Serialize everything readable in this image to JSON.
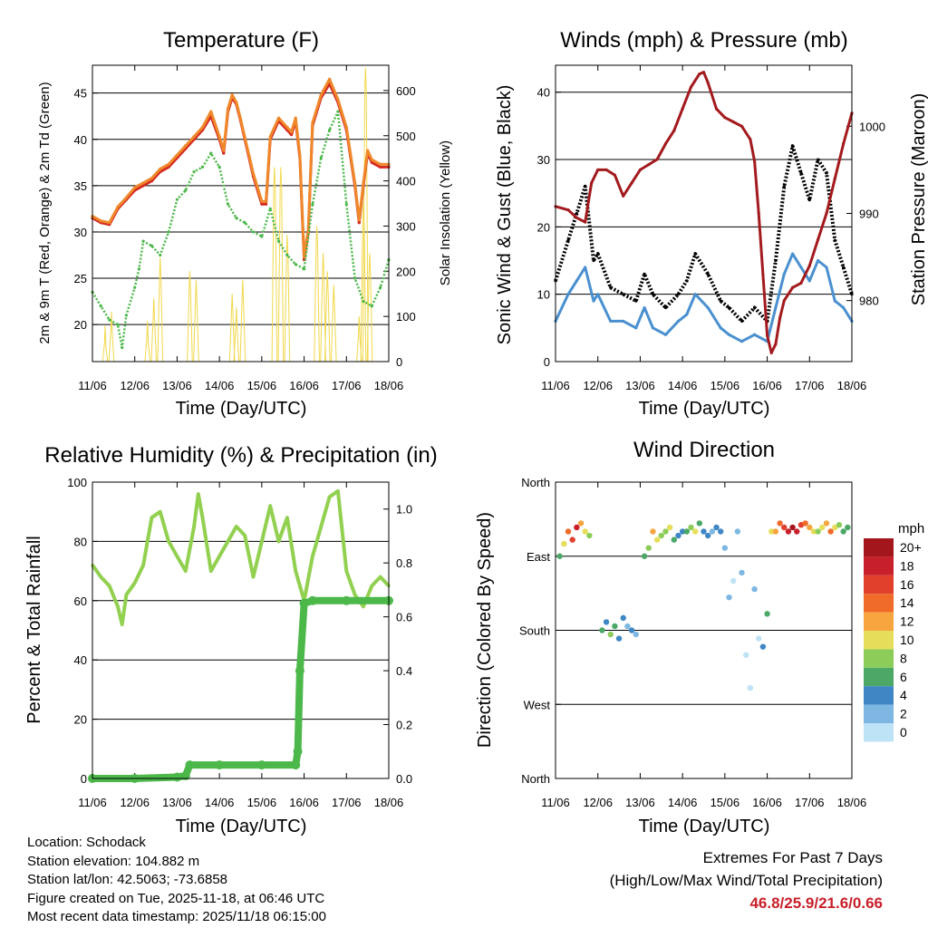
{
  "panels": {
    "temperature": {
      "title": "Temperature (F)",
      "xlabel": "Time (Day/UTC)",
      "ylabel_left": "2m & 9m T (Red, Orange) & 2m Td (Green)",
      "ylabel_right": "Solar Insolation (Yellow)"
    },
    "winds": {
      "title": "Winds (mph) & Pressure (mb)",
      "xlabel": "Time (Day/UTC)",
      "ylabel_left": "Sonic Wind & Gust (Blue, Black)",
      "ylabel_right": "Station Pressure (Maroon)"
    },
    "humidity": {
      "title": "Relative Humidity (%) & Precipitation (in)",
      "xlabel": "Time (Day/UTC)",
      "ylabel_left": "Percent & Total Rainfall"
    },
    "direction": {
      "title": "Wind Direction",
      "xlabel": "Time (Day/UTC)",
      "ylabel_left": "Direction (Colored By Speed)"
    }
  },
  "legend": {
    "title": "mph",
    "labels": [
      "20+",
      "18",
      "16",
      "14",
      "12",
      "10",
      "8",
      "6",
      "4",
      "2",
      "0"
    ],
    "colors": [
      "#a3161c",
      "#c8202a",
      "#e0402c",
      "#f06a2a",
      "#f7a53e",
      "#e6de5a",
      "#8ccd5a",
      "#4ba867",
      "#3f87c4",
      "#7db7e2",
      "#bfe3f6"
    ]
  },
  "info": {
    "location": "Location: Schodack",
    "elevation": "Station elevation: 104.882 m",
    "latlon": "Station lat/lon: 42.5063; -73.6858",
    "created": "Figure created on Tue, 2025-11-18, at 06:46 UTC",
    "timestamp": "Most recent data timestamp: 2025/11/18 06:15:00"
  },
  "extremes": {
    "line1": "Extremes For Past 7 Days",
    "line2": "(High/Low/Max Wind/Total Precipitation)",
    "values": "46.8/25.9/21.6/0.66"
  },
  "chart_data": [
    {
      "type": "line",
      "title": "Temperature (F)",
      "xlabel": "Time (Day/UTC)",
      "ylabel": "2m & 9m T (Red, Orange) & 2m Td (Green)",
      "ylabel_right": "Solar Insolation (Yellow)",
      "x_ticks": [
        "11/06",
        "12/06",
        "13/06",
        "14/06",
        "15/06",
        "16/06",
        "17/06",
        "18/06"
      ],
      "xlim": [
        0,
        7
      ],
      "ylim": [
        16,
        48
      ],
      "y_ticks": [
        20,
        25,
        30,
        35,
        40,
        45
      ],
      "ylim_right": [
        0,
        656
      ],
      "y_ticks_right": [
        0,
        100,
        200,
        300,
        400,
        500,
        600
      ],
      "grid": true,
      "series": [
        {
          "name": "2m T",
          "color": "#d42a22",
          "x": [
            0,
            0.2,
            0.4,
            0.6,
            0.8,
            1.0,
            1.2,
            1.4,
            1.6,
            1.8,
            2.0,
            2.2,
            2.4,
            2.6,
            2.8,
            3.0,
            3.1,
            3.2,
            3.3,
            3.4,
            3.5,
            3.6,
            3.8,
            4.0,
            4.1,
            4.2,
            4.4,
            4.6,
            4.7,
            4.8,
            4.9,
            5.0,
            5.1,
            5.2,
            5.4,
            5.6,
            5.8,
            6.0,
            6.2,
            6.3,
            6.4,
            6.5,
            6.6,
            6.8,
            7.0
          ],
          "y": [
            31.5,
            31.0,
            30.8,
            32.5,
            33.5,
            34.5,
            35.0,
            35.5,
            36.5,
            37.0,
            38.0,
            39.0,
            40.0,
            41.0,
            42.5,
            40.0,
            38.5,
            43.0,
            44.5,
            43.8,
            42.0,
            40.0,
            36.0,
            33.0,
            33.0,
            40.0,
            42.0,
            41.0,
            40.5,
            42.0,
            38.0,
            27.0,
            30.0,
            41.5,
            44.5,
            46.0,
            44.0,
            41.0,
            35.0,
            31.0,
            35.0,
            38.5,
            37.5,
            37.0,
            37.0
          ]
        },
        {
          "name": "9m T",
          "color": "#f0882a",
          "x": [
            0,
            0.2,
            0.4,
            0.6,
            0.8,
            1.0,
            1.2,
            1.4,
            1.6,
            1.8,
            2.0,
            2.2,
            2.4,
            2.6,
            2.8,
            3.0,
            3.1,
            3.2,
            3.3,
            3.4,
            3.5,
            3.6,
            3.8,
            4.0,
            4.1,
            4.2,
            4.4,
            4.6,
            4.7,
            4.8,
            4.9,
            5.0,
            5.1,
            5.2,
            5.4,
            5.6,
            5.8,
            6.0,
            6.2,
            6.3,
            6.4,
            6.5,
            6.6,
            6.8,
            7.0
          ],
          "y": [
            31.7,
            31.2,
            31.0,
            32.7,
            33.7,
            34.8,
            35.3,
            35.8,
            36.8,
            37.3,
            38.3,
            39.3,
            40.3,
            41.3,
            43.0,
            40.3,
            38.8,
            43.3,
            44.8,
            44.0,
            42.2,
            40.2,
            36.3,
            33.3,
            33.3,
            40.3,
            42.3,
            41.3,
            40.8,
            42.3,
            38.3,
            27.3,
            30.3,
            41.8,
            44.8,
            46.5,
            44.3,
            41.3,
            35.3,
            31.3,
            35.3,
            38.8,
            37.8,
            37.3,
            37.3
          ]
        },
        {
          "name": "2m Td",
          "color": "#4cb84a",
          "x": [
            0,
            0.2,
            0.4,
            0.6,
            0.7,
            0.8,
            1.0,
            1.1,
            1.2,
            1.4,
            1.6,
            1.8,
            2.0,
            2.2,
            2.4,
            2.6,
            2.8,
            3.0,
            3.2,
            3.4,
            3.6,
            3.8,
            4.0,
            4.2,
            4.4,
            4.6,
            4.8,
            5.0,
            5.2,
            5.4,
            5.6,
            5.8,
            6.0,
            6.2,
            6.4,
            6.6,
            6.8,
            7.0
          ],
          "y": [
            23.5,
            22.0,
            20.5,
            20.0,
            17.5,
            21.0,
            24.0,
            26.0,
            29.0,
            28.5,
            27.5,
            30.0,
            33.5,
            34.5,
            36.5,
            37.0,
            38.5,
            37.0,
            33.0,
            31.5,
            31.0,
            30.0,
            29.5,
            32.5,
            29.0,
            27.5,
            26.5,
            26.0,
            33.0,
            38.0,
            41.0,
            43.0,
            33.0,
            25.0,
            22.5,
            22.0,
            24.0,
            27.0
          ]
        }
      ],
      "insolation_peaks": {
        "x": [
          0.3,
          0.45,
          1.3,
          1.45,
          1.6,
          2.3,
          2.45,
          3.3,
          3.4,
          3.55,
          4.3,
          4.45,
          4.6,
          5.3,
          5.45,
          5.55,
          5.7,
          6.3,
          6.4,
          6.45,
          6.55
        ],
        "y": [
          80,
          110,
          90,
          140,
          230,
          200,
          180,
          150,
          120,
          180,
          430,
          430,
          280,
          300,
          240,
          200,
          170,
          100,
          350,
          650,
          240
        ]
      }
    },
    {
      "type": "line",
      "title": "Winds (mph) & Pressure (mb)",
      "xlabel": "Time (Day/UTC)",
      "ylabel": "Sonic Wind & Gust (Blue, Black)",
      "ylabel_right": "Station Pressure (Maroon)",
      "x_ticks": [
        "11/06",
        "12/06",
        "13/06",
        "14/06",
        "15/06",
        "16/06",
        "17/06",
        "18/06"
      ],
      "xlim": [
        0,
        7
      ],
      "ylim": [
        0,
        44
      ],
      "y_ticks": [
        0,
        10,
        20,
        30,
        40
      ],
      "ylim_right": [
        973,
        1007
      ],
      "y_ticks_right": [
        980,
        990,
        1000
      ],
      "grid": true,
      "series": [
        {
          "name": "Wind",
          "color": "#4a90d0",
          "x": [
            0,
            0.3,
            0.5,
            0.7,
            0.9,
            1.0,
            1.3,
            1.6,
            1.9,
            2.1,
            2.3,
            2.6,
            2.9,
            3.1,
            3.3,
            3.6,
            3.9,
            4.1,
            4.4,
            4.7,
            5.0,
            5.2,
            5.4,
            5.6,
            5.8,
            6.0,
            6.2,
            6.4,
            6.6,
            6.8,
            7.0
          ],
          "y": [
            6,
            10,
            12,
            14,
            9,
            10,
            6,
            6,
            5,
            8,
            5,
            4,
            6,
            7,
            10,
            8,
            5,
            4,
            3,
            4,
            3,
            8,
            13,
            16,
            14,
            12,
            15,
            14,
            9,
            8,
            6
          ]
        },
        {
          "name": "Gust",
          "color": "#000000",
          "x": [
            0,
            0.3,
            0.5,
            0.7,
            0.9,
            1.0,
            1.3,
            1.6,
            1.9,
            2.1,
            2.3,
            2.6,
            2.9,
            3.1,
            3.3,
            3.6,
            3.9,
            4.1,
            4.4,
            4.7,
            5.0,
            5.2,
            5.4,
            5.6,
            5.8,
            6.0,
            6.2,
            6.4,
            6.6,
            6.8,
            7.0
          ],
          "y": [
            12,
            18,
            22,
            26,
            15,
            16,
            11,
            10,
            9,
            13,
            10,
            8,
            10,
            12,
            16,
            13,
            9,
            8,
            6,
            8,
            6,
            15,
            26,
            32,
            28,
            24,
            30,
            28,
            18,
            14,
            10
          ]
        },
        {
          "name": "Pressure",
          "color": "#a31a1e",
          "x": [
            0,
            0.3,
            0.5,
            0.7,
            0.85,
            1.0,
            1.2,
            1.4,
            1.6,
            1.8,
            2.0,
            2.2,
            2.4,
            2.6,
            2.8,
            3.0,
            3.2,
            3.4,
            3.5,
            3.6,
            3.8,
            4.0,
            4.2,
            4.4,
            4.6,
            4.7,
            4.8,
            4.9,
            5.0,
            5.1,
            5.2,
            5.3,
            5.4,
            5.6,
            5.8,
            6.0,
            6.2,
            6.4,
            6.6,
            6.8,
            7.0
          ],
          "y": [
            990.8,
            990.4,
            989.5,
            989.0,
            993.5,
            995.0,
            995.0,
            994.4,
            992.0,
            993.5,
            995.0,
            995.6,
            996.2,
            998.0,
            999.5,
            1002.0,
            1004.5,
            1006.0,
            1006.2,
            1005.0,
            1002.0,
            1001.0,
            1000.5,
            1000.0,
            998.5,
            996.0,
            990.0,
            983.0,
            976.0,
            974.0,
            975.0,
            978.0,
            980.0,
            981.5,
            982.0,
            984.0,
            987.0,
            990.0,
            994.0,
            998.0,
            1001.5
          ]
        }
      ]
    },
    {
      "type": "line",
      "title": "Relative Humidity (%) & Precipitation (in)",
      "xlabel": "Time (Day/UTC)",
      "ylabel": "Percent & Total Rainfall",
      "x_ticks": [
        "11/06",
        "12/06",
        "13/06",
        "14/06",
        "15/06",
        "16/06",
        "17/06",
        "18/06"
      ],
      "xlim": [
        0,
        7
      ],
      "ylim": [
        0,
        100
      ],
      "y_ticks": [
        0,
        20,
        40,
        60,
        80,
        100
      ],
      "ylim_right": [
        0,
        1.1
      ],
      "y_ticks_right": [
        0.0,
        0.2,
        0.4,
        0.6,
        0.8,
        1.0
      ],
      "grid": true,
      "series": [
        {
          "name": "Relative Humidity",
          "color": "#92d050",
          "x": [
            0,
            0.2,
            0.4,
            0.6,
            0.7,
            0.8,
            1.0,
            1.2,
            1.4,
            1.6,
            1.8,
            2.0,
            2.2,
            2.4,
            2.5,
            2.6,
            2.8,
            3.0,
            3.2,
            3.4,
            3.6,
            3.8,
            4.0,
            4.2,
            4.4,
            4.6,
            4.8,
            5.0,
            5.2,
            5.4,
            5.6,
            5.8,
            6.0,
            6.2,
            6.4,
            6.6,
            6.8,
            7.0
          ],
          "y": [
            72,
            68,
            65,
            58,
            52,
            62,
            66,
            72,
            88,
            90,
            80,
            75,
            70,
            85,
            96,
            88,
            70,
            75,
            80,
            85,
            82,
            68,
            80,
            92,
            80,
            88,
            70,
            60,
            75,
            85,
            95,
            97,
            70,
            62,
            58,
            65,
            68,
            65
          ]
        },
        {
          "name": "Total Precipitation",
          "color": "#4cb84a",
          "axis": "right",
          "x": [
            0,
            1.0,
            2.0,
            2.2,
            2.3,
            3.0,
            4.0,
            4.8,
            4.85,
            4.9,
            5.0,
            5.2,
            6.0,
            7.0
          ],
          "y": [
            0.0,
            0.0,
            0.005,
            0.01,
            0.05,
            0.05,
            0.05,
            0.05,
            0.1,
            0.4,
            0.65,
            0.66,
            0.66,
            0.66
          ]
        }
      ]
    },
    {
      "type": "scatter",
      "title": "Wind Direction",
      "xlabel": "Time (Day/UTC)",
      "ylabel": "Direction (Colored By Speed)",
      "x_ticks": [
        "11/06",
        "12/06",
        "13/06",
        "14/06",
        "15/06",
        "16/06",
        "17/06",
        "18/06"
      ],
      "y_ticks": [
        "North",
        "West",
        "South",
        "East",
        "North"
      ],
      "xlim": [
        0,
        7
      ],
      "ylim": [
        0,
        360
      ],
      "grid": true,
      "series": [
        {
          "name": "Direction",
          "x": [
            0.1,
            0.2,
            0.3,
            0.4,
            0.5,
            0.6,
            0.7,
            0.8,
            1.1,
            1.2,
            1.3,
            1.4,
            1.5,
            1.6,
            1.7,
            1.8,
            1.9,
            2.1,
            2.2,
            2.3,
            2.4,
            2.5,
            2.6,
            2.7,
            2.8,
            2.9,
            3.0,
            3.1,
            3.2,
            3.3,
            3.4,
            3.5,
            3.6,
            3.7,
            3.8,
            3.9,
            4.0,
            4.1,
            4.2,
            4.3,
            4.4,
            4.5,
            4.6,
            4.7,
            4.8,
            4.9,
            5.0,
            5.1,
            5.2,
            5.3,
            5.4,
            5.5,
            5.6,
            5.7,
            5.8,
            5.9,
            6.0,
            6.1,
            6.2,
            6.3,
            6.4,
            6.5,
            6.6,
            6.7,
            6.8,
            6.9
          ],
          "y": [
            270,
            285,
            300,
            290,
            305,
            310,
            300,
            295,
            180,
            190,
            175,
            185,
            170,
            195,
            185,
            180,
            175,
            270,
            280,
            300,
            290,
            295,
            300,
            305,
            290,
            295,
            300,
            300,
            305,
            300,
            310,
            300,
            295,
            300,
            305,
            300,
            280,
            220,
            240,
            300,
            250,
            150,
            110,
            230,
            170,
            160,
            200,
            300,
            300,
            310,
            305,
            300,
            305,
            300,
            308,
            310,
            305,
            300,
            300,
            305,
            310,
            300,
            305,
            308,
            300,
            305
          ],
          "speed": [
            6,
            10,
            14,
            16,
            18,
            12,
            10,
            8,
            6,
            4,
            8,
            6,
            4,
            5,
            3,
            4,
            2,
            6,
            8,
            12,
            10,
            8,
            9,
            10,
            6,
            5,
            4,
            6,
            8,
            10,
            6,
            5,
            4,
            3,
            4,
            5,
            2,
            2,
            1,
            2,
            2,
            1,
            1,
            2,
            1,
            4,
            6,
            10,
            12,
            14,
            16,
            18,
            20,
            18,
            16,
            14,
            12,
            10,
            8,
            10,
            12,
            14,
            10,
            8,
            6,
            6
          ]
        }
      ]
    }
  ]
}
